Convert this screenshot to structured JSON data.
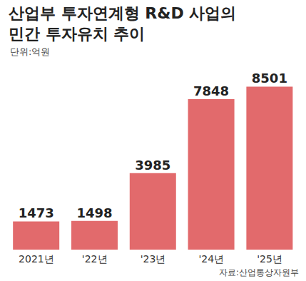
{
  "chart_data": {
    "type": "bar",
    "title": "산업부 투자연계형 R&D 사업의\n민간 투자유치 추이",
    "subtitle": "단위:억원",
    "source": "자료:산업통상자원부",
    "categories": [
      "2021년",
      "'22년",
      "'23년",
      "'24년",
      "'25년"
    ],
    "values": [
      1473,
      1498,
      3985,
      7848,
      8501
    ],
    "color": "#e26a6c",
    "ylim": [
      0,
      9000
    ],
    "data_labels": true,
    "tick_labels": "x",
    "grid": false
  }
}
